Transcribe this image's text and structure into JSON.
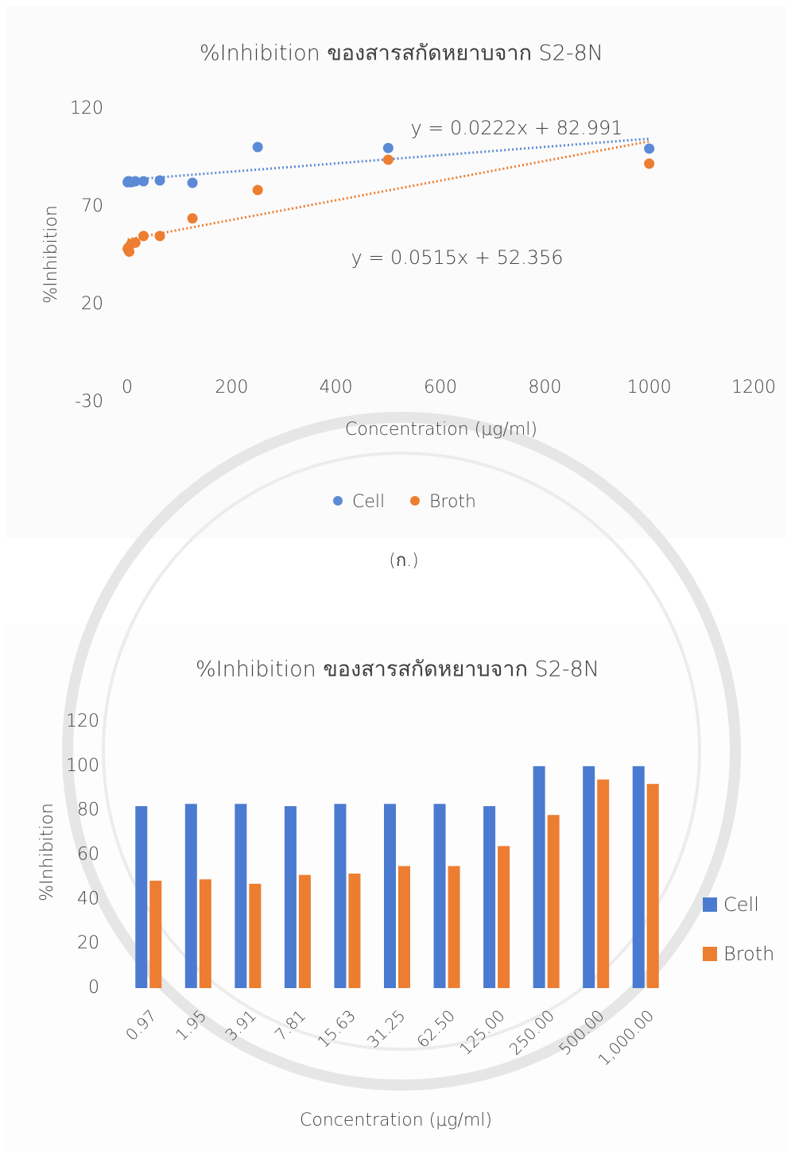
{
  "chart_data": [
    {
      "type": "scatter",
      "title": "%Inhibition ของสารสกัดหยาบจาก S2-8N",
      "x_label": "Concentration (μg/ml)",
      "y_label": "%Inhibition",
      "x": [
        0.97,
        1.95,
        3.91,
        7.81,
        15.63,
        31.25,
        62.5,
        125,
        250,
        500,
        1000
      ],
      "series": [
        {
          "name": "Cell",
          "color": "#5b8bd6",
          "values": [
            82.5,
            83,
            83,
            82.5,
            83,
            83,
            83.4,
            82.2,
            100.5,
            100,
            99.7
          ]
        },
        {
          "name": "Broth",
          "color": "#ed7d31",
          "values": [
            48.4,
            49,
            47,
            51,
            51.6,
            55,
            55,
            64,
            78.5,
            94,
            92
          ]
        }
      ],
      "annotations": [
        "y = 0.0222x + 82.991",
        "y = 0.0515x + 52.356"
      ],
      "xlim": [
        0,
        1200
      ],
      "xticks": [
        0,
        200,
        400,
        600,
        800,
        1000,
        1200
      ],
      "ylim": [
        -30,
        120
      ],
      "yticks": [
        -30,
        20,
        70,
        120
      ],
      "trendline": true,
      "legend": "bottom",
      "caption": "(ก.)"
    },
    {
      "type": "bar",
      "title": "%Inhibition ของสารสกัดหยาบจาก S2-8N",
      "x_label": "Concentration (μg/ml)",
      "y_label": "%Inhibition",
      "categories": [
        "0.97",
        "1.95",
        "3.91",
        "7.81",
        "15.63",
        "31.25",
        "62.50",
        "125.00",
        "250.00",
        "500.00",
        "1,000.00"
      ],
      "series": [
        {
          "name": "Cell",
          "color": "#4a7bd0",
          "values": [
            82,
            83,
            83,
            82,
            83,
            83,
            83,
            82,
            100,
            100,
            100
          ]
        },
        {
          "name": "Broth",
          "color": "#ed7d31",
          "values": [
            48.4,
            49,
            47,
            51,
            51.6,
            55,
            55,
            64,
            78,
            94,
            92
          ]
        }
      ],
      "ylim": [
        0,
        120
      ],
      "yticks": [
        0,
        20,
        40,
        60,
        80,
        100,
        120
      ],
      "legend": "right"
    }
  ]
}
